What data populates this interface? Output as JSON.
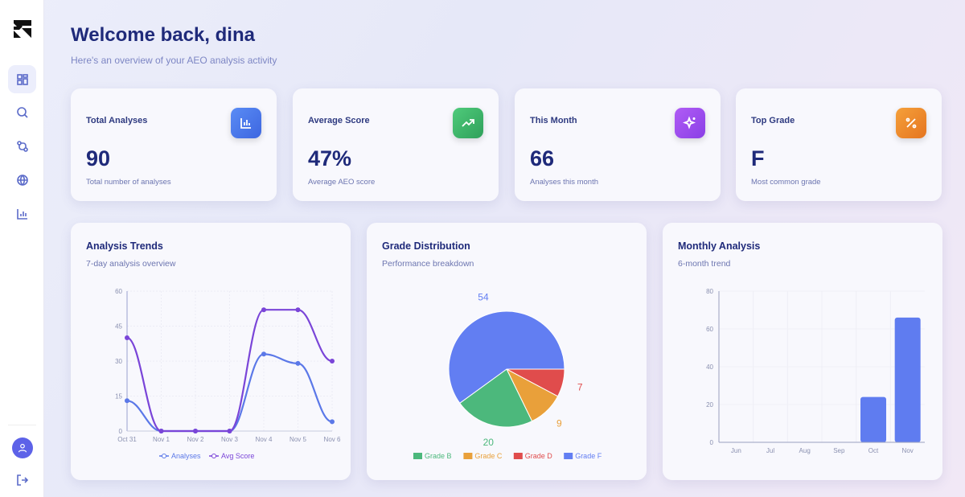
{
  "user": {
    "greeting": "Welcome back, dina",
    "subtitle": "Here's an overview of your AEO analysis activity"
  },
  "sidebar": {
    "items": [
      {
        "icon": "dashboard-icon",
        "active": true
      },
      {
        "icon": "search-icon"
      },
      {
        "icon": "route-icon"
      },
      {
        "icon": "globe-icon"
      },
      {
        "icon": "bar-chart-icon"
      }
    ],
    "bottom": [
      "user-avatar-icon",
      "logout-icon"
    ]
  },
  "stats": [
    {
      "label": "Total Analyses",
      "value": "90",
      "desc": "Total number of analyses",
      "icon": "bar-chart-icon",
      "color": "#4f7df0"
    },
    {
      "label": "Average Score",
      "value": "47%",
      "desc": "Average AEO score",
      "icon": "trending-up-icon",
      "color": "#3fb86a"
    },
    {
      "label": "This Month",
      "value": "66",
      "desc": "Analyses this month",
      "icon": "sparkles-icon",
      "color": "#9b4ff0"
    },
    {
      "label": "Top Grade",
      "value": "F",
      "desc": "Most common grade",
      "icon": "percent-icon",
      "color": "#f08a2a"
    }
  ],
  "charts": {
    "trends": {
      "title": "Analysis Trends",
      "subtitle": "7-day analysis overview"
    },
    "grades": {
      "title": "Grade Distribution",
      "subtitle": "Performance breakdown"
    },
    "monthly": {
      "title": "Monthly Analysis",
      "subtitle": "6-month trend"
    }
  },
  "chart_data": [
    {
      "type": "line",
      "categories": [
        "Oct 31",
        "Nov 1",
        "Nov 2",
        "Nov 3",
        "Nov 4",
        "Nov 5",
        "Nov 6"
      ],
      "ylim": [
        0,
        60
      ],
      "yticks": [
        "0",
        "15",
        "30",
        "45",
        "60"
      ],
      "grid": true,
      "legend": "bottom",
      "series": [
        {
          "name": "Analyses",
          "values": [
            13,
            0,
            0,
            0,
            33,
            29,
            4
          ],
          "color": "#5b78e8"
        },
        {
          "name": "Avg Score",
          "values": [
            40,
            0,
            0,
            0,
            52,
            52,
            30
          ],
          "color": "#7a45d8"
        }
      ]
    },
    {
      "type": "pie",
      "legend": "bottom",
      "slices": [
        {
          "name": "Grade B",
          "value": 20,
          "color": "#4cb87c"
        },
        {
          "name": "Grade C",
          "value": 9,
          "color": "#e9a03a"
        },
        {
          "name": "Grade D",
          "value": 7,
          "color": "#e04c4c"
        },
        {
          "name": "Grade F",
          "value": 54,
          "color": "#627ef2"
        }
      ]
    },
    {
      "type": "bar",
      "categories": [
        "Jun",
        "Jul",
        "Aug",
        "Sep",
        "Oct",
        "Nov"
      ],
      "values": [
        0,
        0,
        0,
        0,
        24,
        66
      ],
      "ylim": [
        0,
        80
      ],
      "yticks": [
        "0",
        "20",
        "40",
        "60",
        "80"
      ],
      "grid": true,
      "color": "#5f7cf0"
    }
  ]
}
